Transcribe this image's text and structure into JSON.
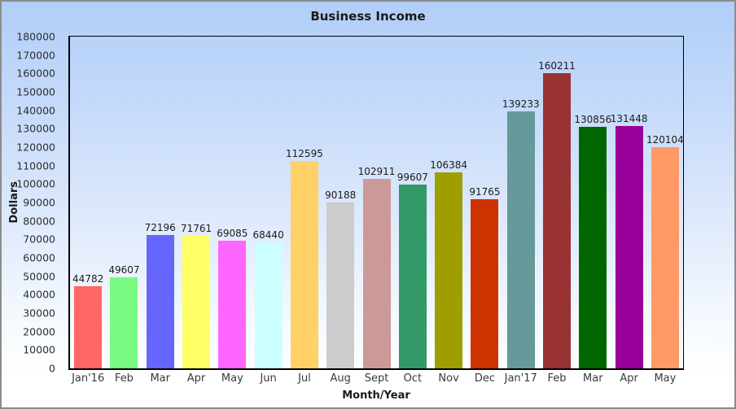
{
  "window": {
    "title": "Business Income"
  },
  "chart_data": {
    "type": "bar",
    "title": "Business Income",
    "xlabel": "Month/Year",
    "ylabel": "Dollars",
    "categories": [
      "Jan'16",
      "Feb",
      "Mar",
      "Apr",
      "May",
      "Jun",
      "Jul",
      "Aug",
      "Sept",
      "Oct",
      "Nov",
      "Dec",
      "Jan'17",
      "Feb",
      "Mar",
      "Apr",
      "May"
    ],
    "values": [
      44782,
      49607,
      72196,
      71761,
      69085,
      68440,
      112595,
      90188,
      102911,
      99607,
      106384,
      91765,
      139233,
      160211,
      130856,
      131448,
      120104
    ],
    "bar_colors": [
      "#FF6666",
      "#78FB80",
      "#6666FF",
      "#FFFF66",
      "#FF66FF",
      "#CCFFFF",
      "#FFD166",
      "#CCCCCC",
      "#CC9999",
      "#339966",
      "#9E9E00",
      "#CC3300",
      "#669999",
      "#993333",
      "#006600",
      "#990099",
      "#FF9966"
    ],
    "ylim": [
      0,
      180000
    ],
    "y_tick_step": 10000,
    "y_tick_labels": [
      "0",
      "10000",
      "20000",
      "30000",
      "40000",
      "50000",
      "60000",
      "70000",
      "80000",
      "90000",
      "100000",
      "110000",
      "120000",
      "130000",
      "140000",
      "150000",
      "160000",
      "170000",
      "180000"
    ],
    "grid": false,
    "legend": "none",
    "value_labels_shown": true,
    "colors": {
      "background_top": "#B0CEF8",
      "background_bottom": "#FFFFFF",
      "plot_border": "#000000",
      "outer_border": "#8C8C8C",
      "text": "#1A1A1A"
    }
  }
}
